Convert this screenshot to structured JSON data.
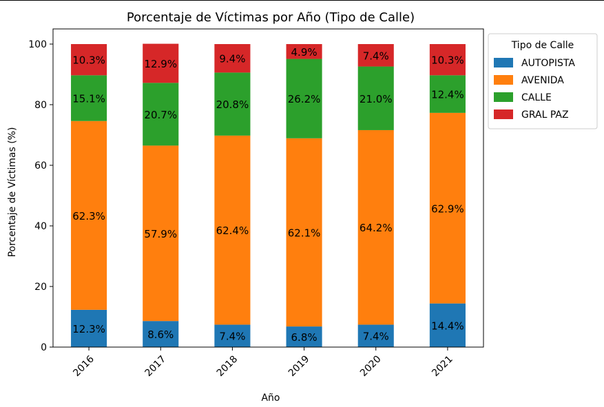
{
  "chart_data": {
    "type": "bar",
    "stacked": true,
    "title": "Porcentaje de Víctimas por Año (Tipo de Calle)",
    "xlabel": "Año",
    "ylabel": "Porcentaje de Víctimas (%)",
    "categories": [
      "2016",
      "2017",
      "2018",
      "2019",
      "2020",
      "2021"
    ],
    "ylim": [
      0,
      105
    ],
    "yticks": [
      "0",
      "20",
      "40",
      "60",
      "80",
      "100"
    ],
    "legend": {
      "title": "Tipo de Calle",
      "placement": "outside-upper-right"
    },
    "series": [
      {
        "name": "AUTOPISTA",
        "color": "#1f77b4",
        "values": [
          12.3,
          8.6,
          7.4,
          6.8,
          7.4,
          14.4
        ],
        "labels": [
          "12.3%",
          "8.6%",
          "7.4%",
          "6.8%",
          "7.4%",
          "14.4%"
        ]
      },
      {
        "name": "AVENIDA",
        "color": "#ff7f0e",
        "values": [
          62.3,
          57.9,
          62.4,
          62.1,
          64.2,
          62.9
        ],
        "labels": [
          "62.3%",
          "57.9%",
          "62.4%",
          "62.1%",
          "64.2%",
          "62.9%"
        ]
      },
      {
        "name": "CALLE",
        "color": "#2ca02c",
        "values": [
          15.1,
          20.7,
          20.8,
          26.2,
          21.0,
          12.4
        ],
        "labels": [
          "15.1%",
          "20.7%",
          "20.8%",
          "26.2%",
          "21.0%",
          "12.4%"
        ]
      },
      {
        "name": "GRAL PAZ",
        "color": "#d62728",
        "values": [
          10.3,
          12.9,
          9.4,
          4.9,
          7.4,
          10.3
        ],
        "labels": [
          "10.3%",
          "12.9%",
          "9.4%",
          "4.9%",
          "7.4%",
          "10.3%"
        ]
      }
    ]
  }
}
